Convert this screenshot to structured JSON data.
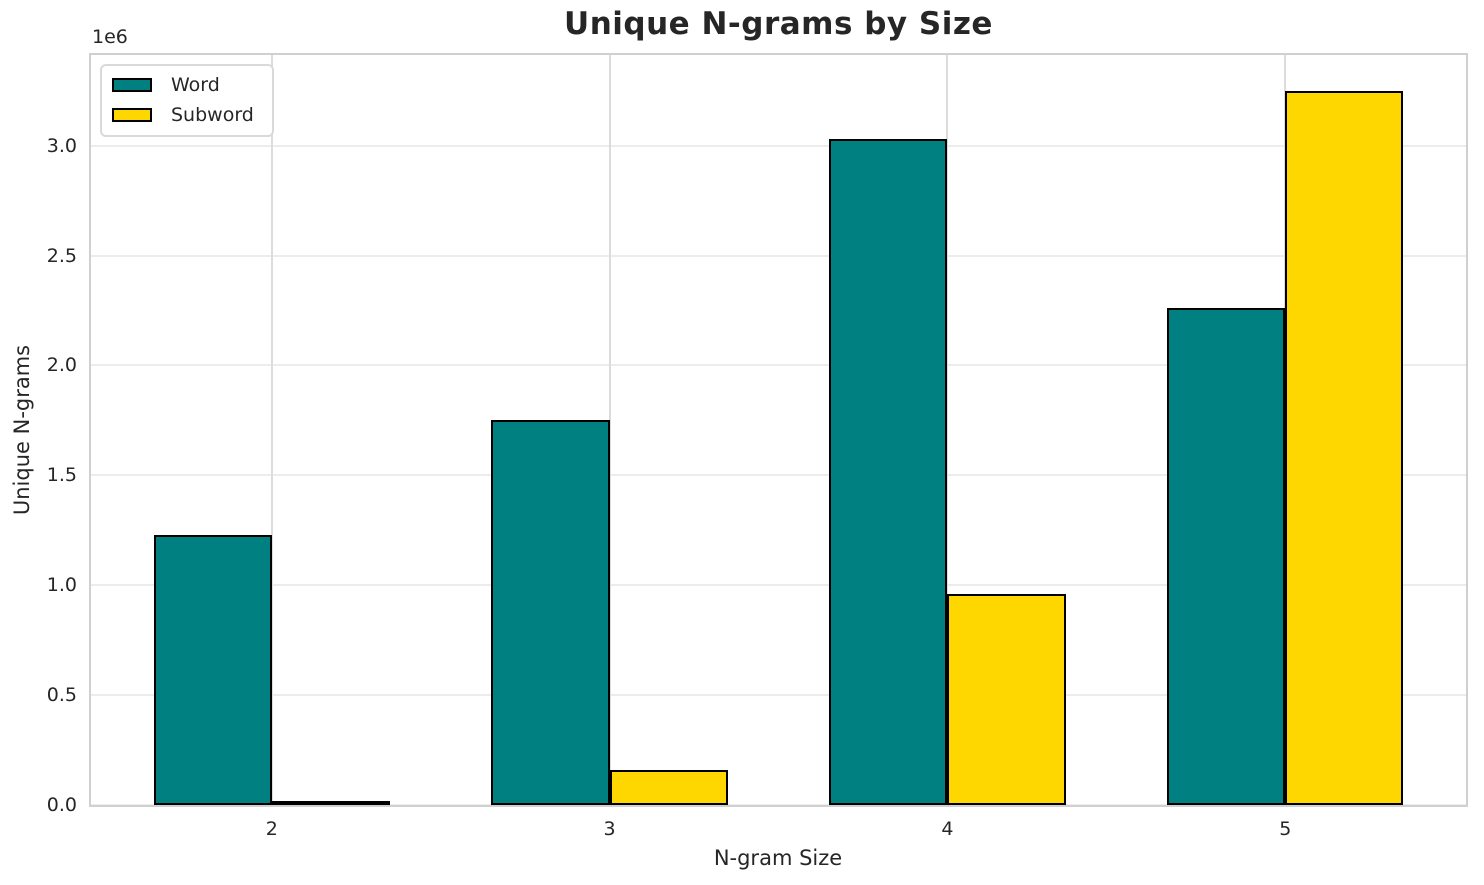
{
  "figure": {
    "background_color": "#ffffff",
    "text_color": "#262626",
    "grid_color": "#ececec",
    "spine_color": "#d0d0d0"
  },
  "chart_data": {
    "type": "bar",
    "title": "Unique N-grams by Size",
    "xlabel": "N-gram Size",
    "ylabel": "Unique N-grams",
    "y_offset_label": "1e6",
    "categories": [
      "2",
      "3",
      "4",
      "5"
    ],
    "series": [
      {
        "name": "Word",
        "color": "#008080",
        "values": [
          1230000,
          1750000,
          3030000,
          2260000
        ]
      },
      {
        "name": "Subword",
        "color": "#FFD700",
        "values": [
          20000,
          160000,
          960000,
          3250000
        ]
      }
    ],
    "bar_edge_color": "#000000",
    "bar_width_units": 0.35,
    "y_ticks": [
      0,
      500000,
      1000000,
      1500000,
      2000000,
      2500000,
      3000000
    ],
    "y_tick_labels": [
      "0.0",
      "0.5",
      "1.0",
      "1.5",
      "2.0",
      "2.5",
      "3.0"
    ],
    "ylim": [
      0,
      3412500
    ],
    "xlim": [
      -0.535,
      3.535
    ],
    "grid": true,
    "legend_position": "upper left"
  }
}
